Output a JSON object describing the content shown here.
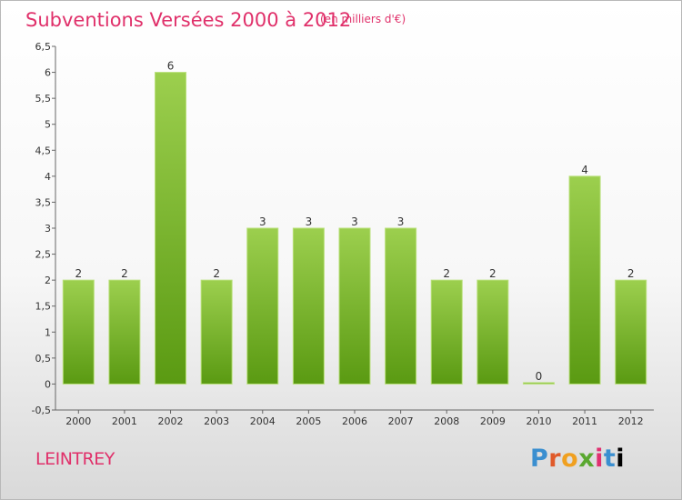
{
  "header": {
    "title": "Subventions Versées 2000 à 2012",
    "subtitle": "(en milliers d'€)"
  },
  "footer": {
    "commune": "LEINTREY",
    "logo": [
      "P",
      "r",
      "o",
      "x",
      "i",
      "t",
      "i"
    ]
  },
  "colors": {
    "title": "#e0306a",
    "bar_light": "#9ccf4e",
    "bar_dark": "#5a9a12"
  },
  "chart_data": {
    "type": "bar",
    "title": "Subventions Versées 2000 à 2012",
    "subtitle": "(en milliers d'€)",
    "xlabel": "",
    "ylabel": "",
    "categories": [
      "2000",
      "2001",
      "2002",
      "2003",
      "2004",
      "2005",
      "2006",
      "2007",
      "2008",
      "2009",
      "2010",
      "2011",
      "2012"
    ],
    "values": [
      2,
      2,
      6,
      2,
      3,
      3,
      3,
      3,
      2,
      2,
      0,
      4,
      2
    ],
    "value_labels": [
      "2",
      "2",
      "6",
      "2",
      "3",
      "3",
      "3",
      "3",
      "2",
      "2",
      "0",
      "4",
      "2"
    ],
    "ylim": [
      -0.5,
      6.5
    ],
    "yticks": [
      "-0,5",
      "0",
      "0,5",
      "1",
      "1,5",
      "2",
      "2,5",
      "3",
      "3,5",
      "4",
      "4,5",
      "5",
      "5,5",
      "6",
      "6,5"
    ],
    "ytick_values": [
      -0.5,
      0,
      0.5,
      1,
      1.5,
      2,
      2.5,
      3,
      3.5,
      4,
      4.5,
      5,
      5.5,
      6,
      6.5
    ],
    "grid": false,
    "legend": "none"
  }
}
